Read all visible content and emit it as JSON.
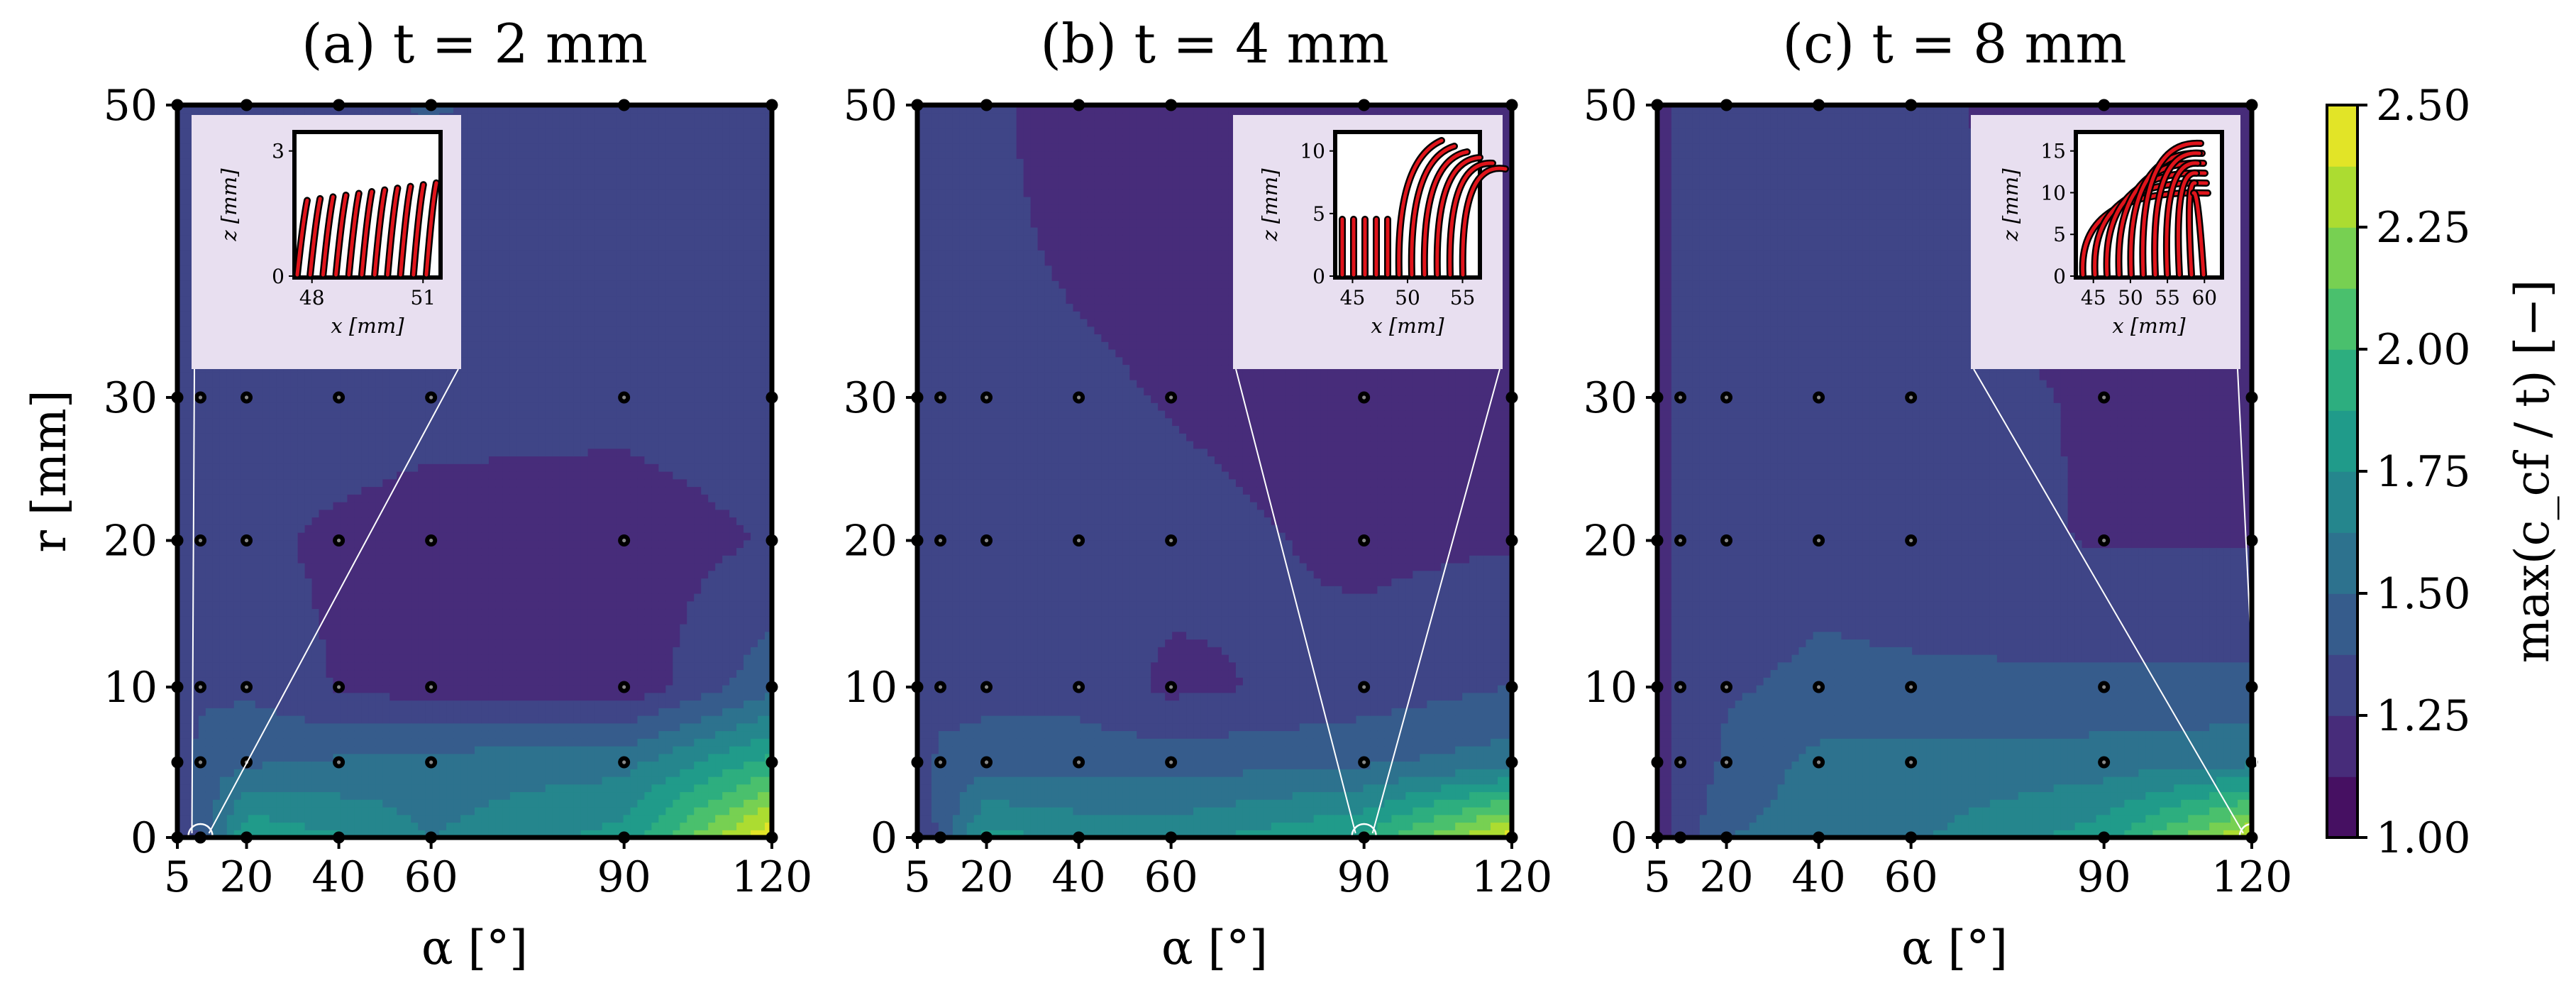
{
  "chart_data": {
    "type": "contour",
    "x_ticks": [
      "5",
      "20",
      "40",
      "60",
      "90",
      "120"
    ],
    "y_ticks": [
      "0",
      "10",
      "20",
      "30",
      "50"
    ],
    "xlabel": "α [°]",
    "ylabel": "r [mm]",
    "x_values": [
      5,
      10,
      20,
      40,
      60,
      90,
      120
    ],
    "y_values": [
      0,
      5,
      10,
      20,
      30,
      50
    ],
    "colorbar": {
      "label": "max(c_cf / t) [−]",
      "min": 1.0,
      "max": 2.5,
      "ticks": [
        "1.00",
        "1.25",
        "1.50",
        "1.75",
        "2.00",
        "2.25",
        "2.50"
      ],
      "colormap": [
        "#440154",
        "#482878",
        "#3e4989",
        "#31688e",
        "#26828e",
        "#1f9e89",
        "#35b779",
        "#6ece58",
        "#b5de2b",
        "#fde725"
      ]
    },
    "panels": [
      {
        "title": "(a) t = 2 mm",
        "thickness_mm": 2,
        "zoom_point": [
          10,
          0
        ],
        "show_ylabel": true,
        "z": [
          [
            1.3,
            1.34,
            1.36,
            1.36,
            1.38,
            1.34,
            1.33
          ],
          [
            1.3,
            1.33,
            1.33,
            1.33,
            1.31,
            1.29,
            1.32
          ],
          [
            1.28,
            1.32,
            1.28,
            1.22,
            1.18,
            1.18,
            1.26
          ],
          [
            1.26,
            1.34,
            1.35,
            1.24,
            1.18,
            1.16,
            1.46
          ],
          [
            1.26,
            1.44,
            1.48,
            1.52,
            1.56,
            1.58,
            1.92
          ],
          [
            1.28,
            1.4,
            1.86,
            1.76,
            1.62,
            1.8,
            2.5
          ]
        ],
        "inset": {
          "xticks": [
            "48",
            "51"
          ],
          "yticks": [
            "0",
            "3"
          ],
          "xlabel": "x [mm]",
          "ylabel": "z [mm]",
          "note": "red fibre paths with black points"
        }
      },
      {
        "title": "(b) t = 4 mm",
        "thickness_mm": 4,
        "zoom_point": [
          90,
          0
        ],
        "show_ylabel": false,
        "z": [
          [
            1.3,
            1.28,
            1.28,
            1.18,
            1.16,
            1.16,
            1.18
          ],
          [
            1.3,
            1.32,
            1.28,
            1.28,
            1.24,
            1.17,
            1.18
          ],
          [
            1.28,
            1.3,
            1.32,
            1.3,
            1.3,
            1.22,
            1.24
          ],
          [
            1.28,
            1.3,
            1.33,
            1.33,
            1.22,
            1.3,
            1.38
          ],
          [
            1.28,
            1.42,
            1.44,
            1.44,
            1.44,
            1.48,
            1.56
          ],
          [
            1.28,
            1.4,
            1.8,
            1.72,
            1.7,
            1.9,
            2.45
          ]
        ],
        "inset": {
          "xticks": [
            "45",
            "50",
            "55"
          ],
          "yticks": [
            "0",
            "5",
            "10"
          ],
          "xlabel": "x [mm]",
          "ylabel": "z [mm]",
          "note": "red fibre paths with black points"
        }
      },
      {
        "title": "(c) t = 8 mm",
        "thickness_mm": 8,
        "zoom_point": [
          120,
          0
        ],
        "show_ylabel": false,
        "z": [
          [
            1.16,
            1.3,
            1.32,
            1.3,
            1.28,
            1.18,
            1.16
          ],
          [
            1.16,
            1.3,
            1.32,
            1.32,
            1.28,
            1.24,
            1.22
          ],
          [
            1.16,
            1.28,
            1.3,
            1.34,
            1.3,
            1.24,
            1.24
          ],
          [
            1.16,
            1.28,
            1.36,
            1.4,
            1.4,
            1.4,
            1.4
          ],
          [
            1.16,
            1.28,
            1.4,
            1.54,
            1.54,
            1.56,
            1.6
          ],
          [
            1.16,
            1.28,
            1.5,
            1.56,
            1.6,
            1.82,
            2.4
          ]
        ],
        "inset": {
          "xticks": [
            "45",
            "50",
            "55",
            "60"
          ],
          "yticks": [
            "0",
            "5",
            "10",
            "15"
          ],
          "xlabel": "x [mm]",
          "ylabel": "z [mm]",
          "note": "red fibre paths with black points"
        }
      }
    ]
  }
}
